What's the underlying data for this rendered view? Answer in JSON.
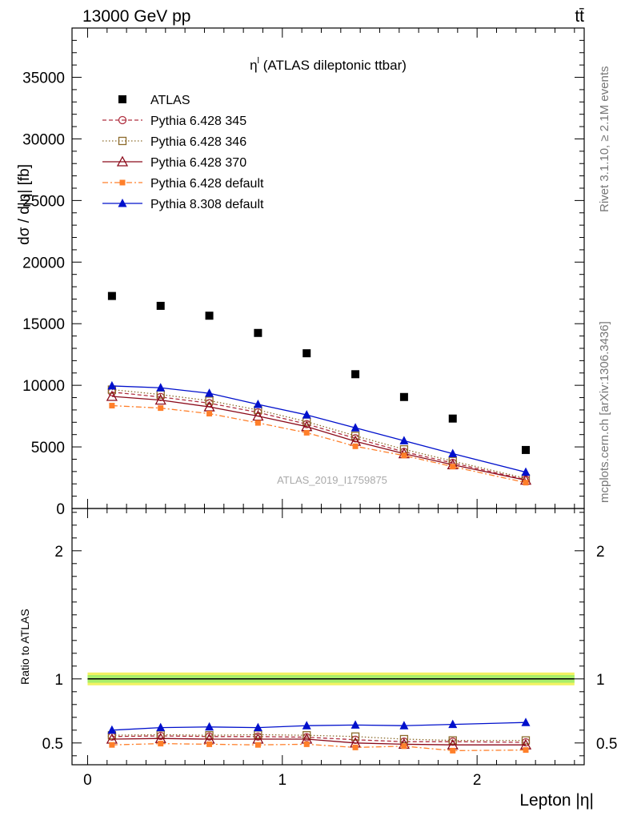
{
  "header": {
    "energy_label": "13000 GeV pp",
    "process_label": "tt̄"
  },
  "side_labels": {
    "rivet": "Rivet 3.1.10, ≥ 2.1M events",
    "mcplots": "mcplots.cern.ch [arXiv:1306.3436]"
  },
  "chart_data": [
    {
      "type": "scatter",
      "title": "η",
      "title_sup": "l",
      "title_rest": " (ATLAS dileptonic ttbar)",
      "watermark": "ATLAS_2019_I1759875",
      "ylabel": "dσ / d|η| [fb]",
      "xlim": [
        -0.08,
        2.55
      ],
      "ylim": [
        0,
        39000
      ],
      "yticks": [
        0,
        5000,
        10000,
        15000,
        20000,
        25000,
        30000,
        35000
      ],
      "ytick_labels": [
        "0",
        "5000",
        "10000",
        "15000",
        "20000",
        "25000",
        "30000",
        "35000"
      ],
      "legend_position": "top-left",
      "x": [
        0.125,
        0.375,
        0.625,
        0.875,
        1.125,
        1.375,
        1.625,
        1.875,
        2.25
      ],
      "series": [
        {
          "name": "ATLAS",
          "color": "#000000",
          "marker": "filled-square",
          "line": "none",
          "values": [
            17250,
            16450,
            15650,
            14250,
            12600,
            10900,
            9050,
            7300,
            4750
          ]
        },
        {
          "name": "Pythia 6.428 345",
          "color": "#b03040",
          "marker": "open-circle",
          "line": "dashed",
          "values": [
            9450,
            9050,
            8550,
            7800,
            6850,
            5700,
            4600,
            3700,
            2350
          ]
        },
        {
          "name": "Pythia 6.428 346",
          "color": "#8b6a2a",
          "marker": "open-square",
          "line": "dotted",
          "values": [
            9650,
            9250,
            8750,
            8000,
            7050,
            5900,
            4800,
            3850,
            2450
          ]
        },
        {
          "name": "Pythia 6.428 370",
          "color": "#8b0a1a",
          "marker": "open-triangle",
          "line": "solid",
          "values": [
            9100,
            8800,
            8250,
            7500,
            6650,
            5450,
            4450,
            3550,
            2300
          ]
        },
        {
          "name": "Pythia 6.428 default",
          "color": "#ff7f2a",
          "marker": "filled-square-small",
          "line": "dashdot",
          "values": [
            8350,
            8150,
            7700,
            6950,
            6150,
            5050,
            4300,
            3400,
            2100
          ]
        },
        {
          "name": "Pythia 8.308 default",
          "color": "#0010cc",
          "marker": "filled-triangle",
          "line": "solid",
          "values": [
            9950,
            9800,
            9350,
            8450,
            7600,
            6550,
            5500,
            4450,
            2950
          ]
        }
      ]
    },
    {
      "type": "line",
      "ylabel": "Ratio to ATLAS",
      "xlabel": "Lepton |η|",
      "xlim": [
        -0.08,
        2.55
      ],
      "ylim": [
        0.33,
        2.33
      ],
      "xticks": [
        0,
        1,
        2
      ],
      "xtick_labels": [
        "0",
        "1",
        "2"
      ],
      "yticks": [
        0.5,
        1,
        2
      ],
      "ytick_labels": [
        "0.5",
        "1",
        "2"
      ],
      "uncertainty_band": {
        "inner": [
          0.97,
          1.03
        ],
        "outer": [
          0.95,
          1.05
        ],
        "inner_color": "#a8ee6a",
        "outer_color": "#f2f262"
      },
      "x": [
        0.125,
        0.375,
        0.625,
        0.875,
        1.125,
        1.375,
        1.625,
        1.875,
        2.25
      ],
      "series": [
        {
          "name": "Pythia 6.428 345",
          "color": "#b03040",
          "marker": "open-circle",
          "line": "dashed",
          "values": [
            0.55,
            0.555,
            0.55,
            0.55,
            0.545,
            0.525,
            0.51,
            0.51,
            0.505
          ]
        },
        {
          "name": "Pythia 6.428 346",
          "color": "#8b6a2a",
          "marker": "open-square",
          "line": "dotted",
          "values": [
            0.56,
            0.565,
            0.56,
            0.565,
            0.56,
            0.55,
            0.53,
            0.52,
            0.52
          ]
        },
        {
          "name": "Pythia 6.428 370",
          "color": "#8b0a1a",
          "marker": "open-triangle",
          "line": "solid",
          "values": [
            0.53,
            0.535,
            0.53,
            0.53,
            0.53,
            0.5,
            0.49,
            0.485,
            0.485
          ]
        },
        {
          "name": "Pythia 6.428 default",
          "color": "#ff7f2a",
          "marker": "filled-square-small",
          "line": "dashdot",
          "values": [
            0.485,
            0.495,
            0.49,
            0.485,
            0.49,
            0.465,
            0.475,
            0.44,
            0.445
          ]
        },
        {
          "name": "Pythia 8.308 default",
          "color": "#0010cc",
          "marker": "filled-triangle",
          "line": "solid",
          "values": [
            0.6,
            0.62,
            0.625,
            0.62,
            0.635,
            0.64,
            0.635,
            0.645,
            0.66
          ]
        }
      ]
    }
  ]
}
